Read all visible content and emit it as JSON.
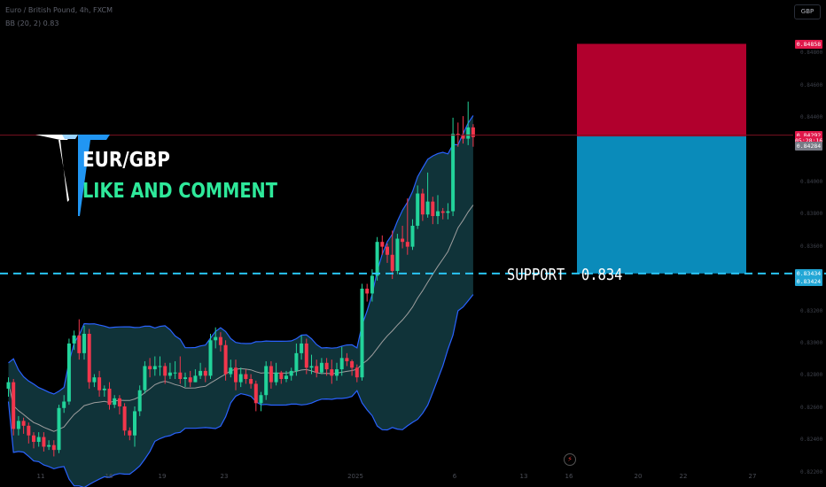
{
  "header": {
    "line1": "Euro / British Pound, 4h, FXCM",
    "line2": "BB (20, 2) 0.83"
  },
  "currency_button": "GBP",
  "overlay": {
    "pair": "EUR/GBP",
    "cta": "LIKE AND COMMENT",
    "support": "SUPPORT  0.834"
  },
  "price_tags": [
    {
      "label": "0.84858",
      "color": "#e0184a",
      "value": 0.84858
    },
    {
      "label": "0.84292",
      "color": "#e0184a",
      "value": 0.84292
    },
    {
      "label": "05:28:16",
      "color": "#e0184a",
      "value": 0.84258
    },
    {
      "label": "0.84284",
      "color": "#787b86",
      "value": 0.84225
    },
    {
      "label": "0.83434",
      "color": "#22a7d6",
      "value": 0.83434
    },
    {
      "label": "0.83424",
      "color": "#22a7d6",
      "value": 0.83385
    }
  ],
  "icons": [
    "tv-logo-icon",
    "flash-icon"
  ],
  "colors": {
    "up": "#22d39a",
    "down": "#f2364c",
    "band_fill": "#12393f",
    "band_line": "#2962ff",
    "basis_line": "#9e9e9e",
    "stop_zone": "#b1002d",
    "target_zone": "#0a8bba",
    "support_line": "#29c5f6"
  },
  "chart_data": {
    "type": "candlestick",
    "axis": {
      "ymin": 0.8222,
      "ymax": 0.8502
    },
    "yticks": [
      "0.84800",
      "0.84600",
      "0.84400",
      "0.84200",
      "0.84000",
      "0.83800",
      "0.83600",
      "0.83400",
      "0.83200",
      "0.83000",
      "0.82800",
      "0.82600",
      "0.82400",
      "0.82200"
    ],
    "xticks": [
      "11",
      "16",
      "19",
      "23",
      "2025",
      "6",
      "13",
      "16",
      "20",
      "22",
      "27"
    ],
    "candles": [
      [
        0.8272,
        0.8276,
        0.8267,
        0.8279
      ],
      [
        0.8276,
        0.8247,
        0.8243,
        0.8278
      ],
      [
        0.8247,
        0.8252,
        0.8243,
        0.8255
      ],
      [
        0.8252,
        0.8249,
        0.8244,
        0.8254
      ],
      [
        0.8249,
        0.8243,
        0.8238,
        0.8251
      ],
      [
        0.8243,
        0.8239,
        0.8235,
        0.8245
      ],
      [
        0.8239,
        0.8242,
        0.8236,
        0.8245
      ],
      [
        0.8242,
        0.8236,
        0.8233,
        0.8245
      ],
      [
        0.8236,
        0.8237,
        0.8234,
        0.824
      ],
      [
        0.8237,
        0.8234,
        0.823,
        0.824
      ],
      [
        0.8234,
        0.826,
        0.8232,
        0.8262
      ],
      [
        0.826,
        0.8264,
        0.8257,
        0.8268
      ],
      [
        0.8264,
        0.83,
        0.8262,
        0.8303
      ],
      [
        0.83,
        0.8305,
        0.8296,
        0.8308
      ],
      [
        0.8305,
        0.8294,
        0.829,
        0.8315
      ],
      [
        0.8294,
        0.8306,
        0.829,
        0.8311
      ],
      [
        0.8306,
        0.8276,
        0.8272,
        0.8309
      ],
      [
        0.8276,
        0.8279,
        0.8273,
        0.8281
      ],
      [
        0.8279,
        0.8271,
        0.8267,
        0.8283
      ],
      [
        0.8271,
        0.8272,
        0.8267,
        0.8274
      ],
      [
        0.8272,
        0.8262,
        0.8259,
        0.8276
      ],
      [
        0.8262,
        0.8266,
        0.826,
        0.8268
      ],
      [
        0.8266,
        0.8261,
        0.8256,
        0.8268
      ],
      [
        0.8261,
        0.8246,
        0.8243,
        0.8263
      ],
      [
        0.8246,
        0.8243,
        0.824,
        0.8248
      ],
      [
        0.8243,
        0.8258,
        0.8236,
        0.8261
      ],
      [
        0.8258,
        0.8271,
        0.8255,
        0.8274
      ],
      [
        0.8271,
        0.8286,
        0.8269,
        0.8289
      ],
      [
        0.8286,
        0.8284,
        0.8279,
        0.8291
      ],
      [
        0.8284,
        0.8286,
        0.828,
        0.8292
      ],
      [
        0.8286,
        0.8286,
        0.828,
        0.8292
      ],
      [
        0.8286,
        0.828,
        0.8275,
        0.8288
      ],
      [
        0.828,
        0.8282,
        0.8278,
        0.8288
      ],
      [
        0.8282,
        0.8282,
        0.8278,
        0.8289
      ],
      [
        0.8282,
        0.8278,
        0.8275,
        0.8292
      ],
      [
        0.8278,
        0.8279,
        0.8273,
        0.8282
      ],
      [
        0.8279,
        0.8276,
        0.8273,
        0.8283
      ],
      [
        0.8276,
        0.828,
        0.8276,
        0.8284
      ],
      [
        0.828,
        0.8283,
        0.8278,
        0.8288
      ],
      [
        0.8283,
        0.828,
        0.8276,
        0.8285
      ],
      [
        0.828,
        0.8302,
        0.8278,
        0.8306
      ],
      [
        0.8302,
        0.8304,
        0.8297,
        0.831
      ],
      [
        0.8304,
        0.8299,
        0.8295,
        0.8307
      ],
      [
        0.8299,
        0.8281,
        0.8277,
        0.8302
      ],
      [
        0.8281,
        0.8285,
        0.8279,
        0.829
      ],
      [
        0.8285,
        0.8276,
        0.8271,
        0.829
      ],
      [
        0.8276,
        0.8281,
        0.8273,
        0.8285
      ],
      [
        0.8281,
        0.8278,
        0.8275,
        0.8284
      ],
      [
        0.8278,
        0.8275,
        0.8272,
        0.8281
      ],
      [
        0.8275,
        0.8263,
        0.8258,
        0.8277
      ],
      [
        0.8263,
        0.8268,
        0.8258,
        0.827
      ],
      [
        0.8268,
        0.8286,
        0.8265,
        0.8289
      ],
      [
        0.8286,
        0.8276,
        0.8272,
        0.8289
      ],
      [
        0.8276,
        0.8282,
        0.8274,
        0.8288
      ],
      [
        0.8282,
        0.8278,
        0.8275,
        0.8283
      ],
      [
        0.8278,
        0.828,
        0.8276,
        0.8283
      ],
      [
        0.828,
        0.8283,
        0.8277,
        0.8285
      ],
      [
        0.8283,
        0.8294,
        0.828,
        0.83
      ],
      [
        0.8294,
        0.83,
        0.829,
        0.8305
      ],
      [
        0.83,
        0.8285,
        0.8281,
        0.8303
      ],
      [
        0.8285,
        0.8286,
        0.8281,
        0.8293
      ],
      [
        0.8286,
        0.8282,
        0.8279,
        0.829
      ],
      [
        0.8282,
        0.8288,
        0.8281,
        0.8291
      ],
      [
        0.8288,
        0.8284,
        0.828,
        0.8291
      ],
      [
        0.8284,
        0.828,
        0.8275,
        0.829
      ],
      [
        0.828,
        0.8284,
        0.8277,
        0.8288
      ],
      [
        0.8284,
        0.8291,
        0.828,
        0.8298
      ],
      [
        0.8291,
        0.8289,
        0.8286,
        0.8294
      ],
      [
        0.8289,
        0.8285,
        0.828,
        0.829
      ],
      [
        0.8285,
        0.8279,
        0.8276,
        0.8287
      ],
      [
        0.8279,
        0.8334,
        0.8277,
        0.8337
      ],
      [
        0.8334,
        0.8331,
        0.8326,
        0.8337
      ],
      [
        0.8331,
        0.8342,
        0.8326,
        0.8346
      ],
      [
        0.8342,
        0.8363,
        0.8339,
        0.8366
      ],
      [
        0.8363,
        0.836,
        0.8355,
        0.8367
      ],
      [
        0.836,
        0.8355,
        0.835,
        0.8362
      ],
      [
        0.8355,
        0.8345,
        0.834,
        0.837
      ],
      [
        0.8345,
        0.8365,
        0.8343,
        0.8368
      ],
      [
        0.8365,
        0.8363,
        0.8359,
        0.8373
      ],
      [
        0.8363,
        0.836,
        0.8355,
        0.839
      ],
      [
        0.836,
        0.8373,
        0.8358,
        0.8377
      ],
      [
        0.8373,
        0.8393,
        0.8371,
        0.8398
      ],
      [
        0.8393,
        0.838,
        0.8376,
        0.8396
      ],
      [
        0.838,
        0.8388,
        0.8378,
        0.8406
      ],
      [
        0.8388,
        0.8379,
        0.8374,
        0.8391
      ],
      [
        0.8379,
        0.8382,
        0.8374,
        0.8392
      ],
      [
        0.8382,
        0.8381,
        0.8377,
        0.8384
      ],
      [
        0.8381,
        0.8382,
        0.8377,
        0.8387
      ],
      [
        0.8382,
        0.843,
        0.8379,
        0.844
      ],
      [
        0.843,
        0.8429,
        0.8422,
        0.8437
      ],
      [
        0.8429,
        0.8427,
        0.8424,
        0.8441
      ],
      [
        0.8427,
        0.8434,
        0.8423,
        0.845
      ],
      [
        0.8434,
        0.8428,
        0.8422,
        0.8436
      ]
    ],
    "support": 0.83434,
    "position": {
      "entry": 0.84284,
      "stop": 0.84858,
      "target": 0.83434
    }
  }
}
